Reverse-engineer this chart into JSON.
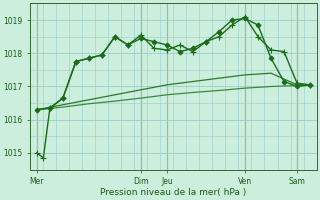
{
  "background_color": "#cceedd",
  "grid_color": "#99cccc",
  "xlabel": "Pression niveau de la mer( hPa )",
  "xlim": [
    0,
    132
  ],
  "ylim": [
    1014.5,
    1019.5
  ],
  "yticks": [
    1015,
    1016,
    1017,
    1018,
    1019
  ],
  "xtick_positions": [
    3,
    51,
    63,
    99,
    123
  ],
  "xtick_labels": [
    "Mer",
    "Dim",
    "Jeu",
    "Ven",
    "Sam"
  ],
  "minor_x_step": 6,
  "line1": {
    "x": [
      3,
      6,
      9,
      15,
      21,
      27,
      33,
      39,
      45,
      51,
      57,
      63,
      69,
      75,
      81,
      87,
      93,
      99,
      105,
      111,
      117,
      123,
      129
    ],
    "y": [
      1015.0,
      1014.85,
      1016.35,
      1016.65,
      1017.75,
      1017.85,
      1017.95,
      1018.5,
      1018.25,
      1018.55,
      1018.15,
      1018.1,
      1018.25,
      1018.05,
      1018.35,
      1018.5,
      1018.85,
      1019.1,
      1018.5,
      1018.1,
      1018.05,
      1017.1,
      1017.05
    ],
    "color": "#1a6b1a",
    "lw": 1.0,
    "marker": "+",
    "ms": 4,
    "ls": "-"
  },
  "line2": {
    "x": [
      3,
      9,
      15,
      21,
      27,
      33,
      39,
      45,
      51,
      57,
      63,
      69,
      75,
      81,
      87,
      93,
      99,
      105,
      111,
      117,
      123,
      129
    ],
    "y": [
      1016.3,
      1016.35,
      1016.65,
      1017.75,
      1017.85,
      1017.95,
      1018.5,
      1018.25,
      1018.45,
      1018.35,
      1018.25,
      1018.05,
      1018.15,
      1018.35,
      1018.65,
      1019.0,
      1019.05,
      1018.85,
      1017.85,
      1017.15,
      1017.0,
      1017.05
    ],
    "color": "#1a6b1a",
    "lw": 1.0,
    "marker": "D",
    "ms": 2.5,
    "ls": "-"
  },
  "line3": {
    "x": [
      3,
      15,
      27,
      39,
      51,
      63,
      75,
      87,
      99,
      111,
      123,
      129
    ],
    "y": [
      1016.3,
      1016.45,
      1016.6,
      1016.75,
      1016.9,
      1017.05,
      1017.15,
      1017.25,
      1017.35,
      1017.4,
      1017.05,
      1017.05
    ],
    "color": "#2a7a2a",
    "lw": 0.9,
    "marker": null,
    "ms": 0,
    "ls": "-"
  },
  "line4": {
    "x": [
      3,
      15,
      27,
      39,
      51,
      63,
      75,
      87,
      99,
      111,
      123,
      129
    ],
    "y": [
      1016.3,
      1016.38,
      1016.48,
      1016.56,
      1016.65,
      1016.75,
      1016.82,
      1016.88,
      1016.95,
      1017.0,
      1017.03,
      1017.05
    ],
    "color": "#3a8a3a",
    "lw": 0.9,
    "marker": null,
    "ms": 0,
    "ls": "-"
  }
}
